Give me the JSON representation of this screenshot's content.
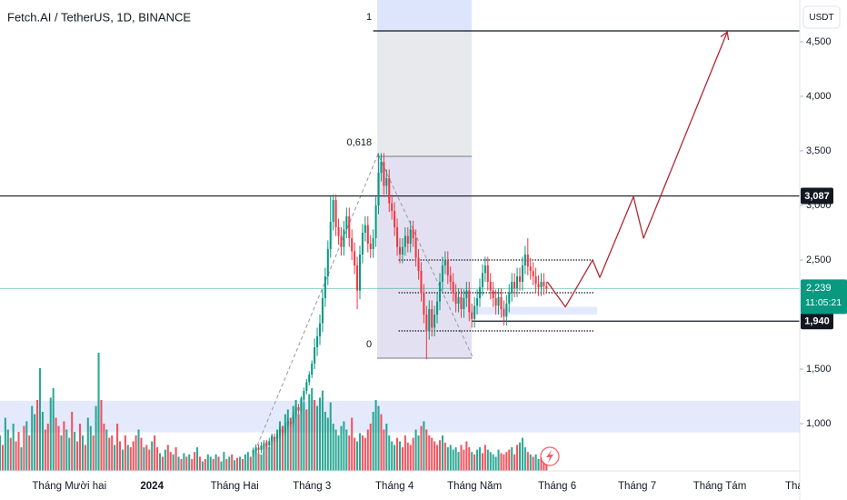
{
  "chart_data": {
    "type": "candlestick",
    "title": "Fetch.AI / TetherUS, 1D, BINANCE",
    "currency": "USDT",
    "xlim": [
      0,
      300
    ],
    "xticks": [
      {
        "value": 26,
        "label": "Tháng Mười hai"
      },
      {
        "value": 57,
        "label": "2024"
      },
      {
        "value": 88,
        "label": "Tháng Hai"
      },
      {
        "value": 117,
        "label": "Tháng 3"
      },
      {
        "value": 148,
        "label": "Tháng 4"
      },
      {
        "value": 178,
        "label": "Tháng Năm"
      },
      {
        "value": 209,
        "label": "Tháng 6"
      },
      {
        "value": 239,
        "label": "Tháng 7"
      },
      {
        "value": 270,
        "label": "Tháng Tám"
      },
      {
        "value": 299,
        "label": "Thán"
      }
    ],
    "ylim": [
      0.567,
      4.883
    ],
    "yticks": [
      {
        "value": 4.5,
        "label": "4,500"
      },
      {
        "value": 4.0,
        "label": "4,000"
      },
      {
        "value": 3.5,
        "label": "3,500"
      },
      {
        "value": 3.0,
        "label": "3,000"
      },
      {
        "value": 2.5,
        "label": "2,500"
      },
      {
        "value": 1.5,
        "label": "1,500"
      },
      {
        "value": 1.0,
        "label": "1,000"
      }
    ],
    "up_color": "#089981",
    "down_color": "#f23645",
    "candles": {
      "x": [
        95,
        96,
        97,
        98,
        99,
        100,
        101,
        102,
        103,
        104,
        105,
        106,
        107,
        108,
        109,
        110,
        111,
        112,
        113,
        114,
        115,
        116,
        117,
        118,
        119,
        120,
        121,
        122,
        123,
        124,
        125,
        126,
        127,
        128,
        129,
        130,
        131,
        132,
        133,
        134,
        135,
        136,
        137,
        138,
        139,
        140,
        141,
        142,
        143,
        144,
        145,
        146,
        147,
        148,
        149,
        150,
        151,
        152,
        153,
        154,
        155,
        156,
        157,
        158,
        159,
        160,
        161,
        162,
        163,
        164,
        165,
        166,
        167,
        168,
        169,
        170,
        171,
        172,
        173,
        174,
        175,
        176,
        177,
        178,
        179,
        180,
        181,
        182,
        183,
        184,
        185,
        186,
        187,
        188,
        189,
        190,
        191,
        192,
        193,
        194,
        195,
        196,
        197,
        198,
        199,
        200,
        201,
        202,
        203,
        204,
        205
      ],
      "open": [
        0.73,
        0.75,
        0.78,
        0.76,
        0.8,
        0.82,
        0.8,
        0.84,
        0.88,
        0.86,
        0.9,
        0.95,
        0.92,
        0.98,
        1.02,
        1.0,
        1.08,
        1.15,
        1.12,
        1.22,
        1.3,
        1.38,
        1.45,
        1.55,
        1.7,
        1.8,
        1.92,
        2.15,
        2.35,
        2.6,
        2.85,
        3.05,
        2.8,
        2.72,
        2.62,
        2.78,
        2.9,
        2.7,
        2.58,
        2.45,
        2.22,
        2.55,
        2.75,
        2.82,
        2.65,
        2.6,
        2.7,
        3.0,
        3.3,
        3.4,
        3.18,
        3.25,
        3.02,
        2.95,
        2.8,
        2.62,
        2.55,
        2.62,
        2.72,
        2.65,
        2.78,
        2.7,
        2.52,
        2.4,
        2.2,
        2.0,
        1.85,
        2.05,
        1.88,
        2.0,
        2.12,
        2.3,
        2.45,
        2.5,
        2.36,
        2.3,
        2.2,
        2.1,
        2.16,
        2.05,
        2.15,
        2.22,
        2.02,
        1.96,
        2.08,
        2.15,
        2.25,
        2.38,
        2.45,
        2.3,
        2.22,
        2.15,
        2.08,
        2.16,
        2.05,
        1.98,
        2.1,
        2.2,
        2.3,
        2.24,
        2.35,
        2.3,
        2.45,
        2.55,
        2.44,
        2.4,
        2.35,
        2.28,
        2.25,
        2.3,
        2.26
      ],
      "high": [
        0.78,
        0.81,
        0.81,
        0.83,
        0.85,
        0.85,
        0.87,
        0.91,
        0.91,
        0.93,
        0.98,
        0.98,
        1.01,
        1.05,
        1.05,
        1.11,
        1.18,
        1.18,
        1.25,
        1.33,
        1.41,
        1.48,
        1.58,
        1.78,
        1.88,
        2.0,
        2.23,
        2.43,
        2.68,
        3.08,
        3.1,
        3.1,
        2.88,
        2.8,
        2.86,
        2.98,
        2.98,
        2.78,
        2.66,
        2.53,
        2.63,
        2.83,
        2.9,
        2.9,
        2.73,
        2.78,
        3.08,
        3.48,
        3.48,
        3.48,
        3.33,
        3.33,
        3.1,
        3.03,
        2.88,
        2.7,
        2.7,
        2.8,
        2.8,
        2.86,
        2.86,
        2.78,
        2.6,
        2.48,
        2.28,
        2.08,
        2.13,
        2.13,
        2.08,
        2.2,
        2.38,
        2.53,
        2.58,
        2.58,
        2.44,
        2.38,
        2.28,
        2.24,
        2.24,
        2.23,
        2.3,
        2.3,
        2.1,
        2.16,
        2.23,
        2.33,
        2.46,
        2.53,
        2.53,
        2.38,
        2.3,
        2.23,
        2.24,
        2.24,
        2.13,
        2.18,
        2.28,
        2.38,
        2.38,
        2.43,
        2.43,
        2.53,
        2.63,
        2.7,
        2.52,
        2.48,
        2.43,
        2.36,
        2.38,
        2.38,
        2.3
      ],
      "low": [
        0.7,
        0.72,
        0.73,
        0.73,
        0.77,
        0.77,
        0.77,
        0.81,
        0.83,
        0.83,
        0.87,
        0.89,
        0.89,
        0.95,
        0.97,
        0.97,
        1.05,
        1.09,
        1.09,
        1.19,
        1.27,
        1.35,
        1.42,
        1.5,
        1.62,
        1.72,
        1.84,
        2.07,
        2.27,
        2.52,
        2.77,
        2.72,
        2.64,
        2.54,
        2.54,
        2.7,
        2.62,
        2.5,
        2.37,
        2.05,
        2.14,
        2.47,
        2.67,
        2.57,
        2.52,
        2.52,
        2.62,
        2.92,
        3.22,
        3.1,
        3.1,
        2.94,
        2.87,
        2.72,
        2.54,
        2.47,
        2.47,
        2.54,
        2.57,
        2.57,
        2.62,
        2.44,
        2.32,
        2.12,
        1.92,
        1.59,
        1.77,
        1.8,
        1.8,
        1.92,
        2.04,
        2.22,
        2.37,
        2.28,
        2.22,
        2.12,
        2.02,
        2.02,
        1.97,
        1.97,
        2.07,
        1.94,
        1.88,
        1.88,
        2.0,
        2.07,
        2.17,
        2.3,
        2.22,
        2.14,
        2.07,
        2.0,
        2.0,
        1.97,
        1.9,
        1.9,
        2.02,
        2.12,
        2.16,
        2.16,
        2.22,
        2.22,
        2.37,
        2.36,
        2.32,
        2.27,
        2.2,
        2.17,
        2.17,
        2.18,
        2.2
      ],
      "close": [
        0.75,
        0.78,
        0.76,
        0.8,
        0.82,
        0.8,
        0.84,
        0.88,
        0.86,
        0.9,
        0.95,
        0.92,
        0.98,
        1.02,
        1.0,
        1.08,
        1.15,
        1.12,
        1.22,
        1.3,
        1.38,
        1.45,
        1.55,
        1.7,
        1.8,
        1.92,
        2.15,
        2.35,
        2.6,
        2.85,
        3.05,
        2.8,
        2.72,
        2.62,
        2.78,
        2.9,
        2.7,
        2.58,
        2.45,
        2.22,
        2.55,
        2.75,
        2.82,
        2.65,
        2.6,
        2.7,
        3.0,
        3.3,
        3.4,
        3.18,
        3.25,
        3.02,
        2.95,
        2.8,
        2.62,
        2.55,
        2.62,
        2.72,
        2.65,
        2.78,
        2.7,
        2.52,
        2.4,
        2.2,
        2.0,
        1.85,
        2.05,
        1.88,
        2.0,
        2.12,
        2.3,
        2.45,
        2.5,
        2.36,
        2.3,
        2.2,
        2.1,
        2.16,
        2.05,
        2.15,
        2.22,
        2.02,
        1.96,
        2.08,
        2.15,
        2.25,
        2.38,
        2.45,
        2.3,
        2.22,
        2.15,
        2.08,
        2.16,
        2.05,
        1.98,
        2.1,
        2.2,
        2.3,
        2.24,
        2.35,
        2.3,
        2.45,
        2.55,
        2.44,
        2.4,
        2.35,
        2.28,
        2.25,
        2.3,
        2.26,
        2.239
      ]
    },
    "volume_ylim": [
      0,
      100
    ],
    "volume": {
      "x": [
        0,
        1,
        2,
        3,
        4,
        5,
        6,
        7,
        8,
        9,
        10,
        11,
        12,
        13,
        14,
        15,
        16,
        17,
        18,
        19,
        20,
        21,
        22,
        23,
        24,
        25,
        26,
        27,
        28,
        29,
        30,
        31,
        32,
        33,
        34,
        35,
        36,
        37,
        38,
        39,
        40,
        41,
        42,
        43,
        44,
        45,
        46,
        47,
        48,
        49,
        50,
        51,
        52,
        53,
        54,
        55,
        56,
        57,
        58,
        59,
        60,
        61,
        62,
        63,
        64,
        65,
        66,
        67,
        68,
        69,
        70,
        71,
        72,
        73,
        74,
        75,
        76,
        77,
        78,
        79,
        80,
        81,
        82,
        83,
        84,
        85,
        86,
        87,
        88,
        89,
        90,
        91,
        92,
        93,
        94,
        95,
        96,
        97,
        98,
        99,
        100,
        101,
        102,
        103,
        104,
        105,
        106,
        107,
        108,
        109,
        110,
        111,
        112,
        113,
        114,
        115,
        116,
        117,
        118,
        119,
        120,
        121,
        122,
        123,
        124,
        125,
        126,
        127,
        128,
        129,
        130,
        131,
        132,
        133,
        134,
        135,
        136,
        137,
        138,
        139,
        140,
        141,
        142,
        143,
        144,
        145,
        146,
        147,
        148,
        149,
        150,
        151,
        152,
        153,
        154,
        155,
        156,
        157,
        158,
        159,
        160,
        161,
        162,
        163,
        164,
        165,
        166,
        167,
        168,
        169,
        170,
        171,
        172,
        173,
        174,
        175,
        176,
        177,
        178,
        179,
        180,
        181,
        182,
        183,
        184,
        185,
        186,
        187,
        188,
        189,
        190,
        191,
        192,
        193,
        194,
        195,
        196,
        197,
        198,
        199,
        200,
        201,
        202,
        203,
        204,
        205
      ],
      "values": [
        30,
        22,
        45,
        35,
        28,
        40,
        25,
        33,
        20,
        38,
        42,
        30,
        55,
        48,
        60,
        87,
        50,
        35,
        40,
        62,
        70,
        45,
        38,
        30,
        42,
        35,
        28,
        50,
        33,
        25,
        40,
        30,
        22,
        45,
        38,
        30,
        55,
        100,
        60,
        40,
        35,
        28,
        30,
        22,
        40,
        25,
        18,
        30,
        22,
        20,
        25,
        30,
        35,
        28,
        20,
        22,
        18,
        25,
        30,
        20,
        15,
        12,
        18,
        22,
        16,
        14,
        20,
        12,
        10,
        15,
        12,
        14,
        10,
        16,
        20,
        12,
        8,
        10,
        14,
        12,
        10,
        14,
        12,
        8,
        16,
        10,
        12,
        14,
        9,
        11,
        12,
        10,
        14,
        16,
        12,
        18,
        20,
        15,
        14,
        22,
        25,
        20,
        30,
        28,
        35,
        42,
        38,
        48,
        52,
        45,
        55,
        60,
        48,
        62,
        58,
        52,
        65,
        70,
        60,
        55,
        62,
        68,
        50,
        45,
        58,
        40,
        35,
        30,
        38,
        42,
        35,
        30,
        45,
        28,
        25,
        32,
        30,
        28,
        35,
        40,
        50,
        60,
        55,
        48,
        35,
        40,
        30,
        25,
        22,
        28,
        25,
        20,
        30,
        24,
        22,
        28,
        35,
        30,
        38,
        42,
        35,
        30,
        28,
        25,
        22,
        26,
        30,
        24,
        20,
        22,
        18,
        20,
        16,
        22,
        18,
        25,
        20,
        16,
        14,
        18,
        20,
        15,
        22,
        18,
        16,
        14,
        12,
        18,
        15,
        14,
        16,
        18,
        20,
        14,
        22,
        24,
        28,
        20,
        16,
        14,
        12,
        14,
        10,
        12,
        8,
        6
      ],
      "up": [
        1,
        0,
        1,
        1,
        0,
        1,
        0,
        0,
        1,
        0,
        1,
        0,
        1,
        1,
        0,
        1,
        1,
        0,
        0,
        1,
        1,
        0,
        0,
        1,
        0,
        1,
        1,
        0,
        1,
        0,
        0,
        1,
        0,
        1,
        1,
        0,
        1,
        1,
        0,
        0,
        1,
        0,
        0,
        1,
        0,
        0,
        1,
        0,
        1,
        0,
        0,
        0,
        1,
        0,
        1,
        0,
        0,
        1,
        0,
        0,
        1,
        0,
        1,
        0,
        0,
        1,
        0,
        1,
        0,
        1,
        0,
        1,
        0,
        0,
        1,
        0,
        1,
        0,
        1,
        1,
        0,
        1,
        0,
        1,
        1,
        0,
        1,
        0,
        1,
        0,
        1,
        0,
        1,
        1,
        0,
        1,
        1,
        0,
        1,
        1,
        0,
        1,
        1,
        0,
        1,
        1,
        0,
        1,
        1,
        0,
        1,
        1,
        0,
        1,
        1,
        0,
        1,
        1,
        0,
        1,
        1,
        1,
        1,
        1,
        1,
        1,
        1,
        1,
        1,
        1,
        1,
        0,
        0,
        0,
        1,
        1,
        0,
        0,
        0,
        0,
        1,
        1,
        1,
        0,
        0,
        1,
        1,
        1,
        1,
        0,
        1,
        0,
        0,
        0,
        0,
        0,
        1,
        1,
        0,
        1,
        0,
        0,
        0,
        0,
        0,
        0,
        1,
        0,
        1,
        1,
        1,
        1,
        1,
        0,
        0,
        0,
        0,
        1,
        0,
        1,
        1,
        0,
        0,
        1,
        1,
        1,
        1,
        1,
        0,
        0,
        0,
        0,
        1,
        0,
        0,
        1,
        1,
        1,
        0,
        1,
        0,
        1,
        1,
        0,
        0,
        0,
        0,
        0,
        1,
        0,
        0
      ]
    },
    "fib": {
      "x": [
        141.5,
        177
      ],
      "levels": [
        {
          "value": 1,
          "label": "1",
          "price": 4.6
        },
        {
          "value": 0.618,
          "label": "0,618",
          "price": 3.45
        },
        {
          "value": 0,
          "label": "0",
          "price": 1.6
        }
      ]
    },
    "fib_trend": {
      "x": [
        96.5,
        141.8,
        177.3
      ],
      "y": [
        0.8,
        3.47,
        1.61
      ]
    },
    "top_line": {
      "price": 4.6,
      "x_start": 140
    },
    "levels": [
      {
        "price": 3.087,
        "label": "3,087",
        "x_start": 0
      },
      {
        "price": 1.94,
        "label": "1,940",
        "x_start": 177
      }
    ],
    "dotted_levels": {
      "x": [
        149.5,
        223
      ],
      "prices": [
        2.5,
        2.2,
        1.85
      ]
    },
    "zones": [
      {
        "x": [
          177,
          224
        ],
        "y": [
          2.0,
          2.07
        ]
      },
      {
        "x": [
          0,
          300
        ],
        "y": [
          0.92,
          1.21
        ]
      }
    ],
    "projection": {
      "x": [
        205.3,
        212.1,
        222.3,
        225.0,
        237.6,
        241.4,
        272.8
      ],
      "y": [
        2.3,
        2.07,
        2.5,
        2.34,
        3.08,
        2.7,
        4.59
      ],
      "color": "#b22833"
    },
    "last_price": {
      "value": 2.239,
      "label": "2,239",
      "countdown": "11:05:21"
    }
  }
}
